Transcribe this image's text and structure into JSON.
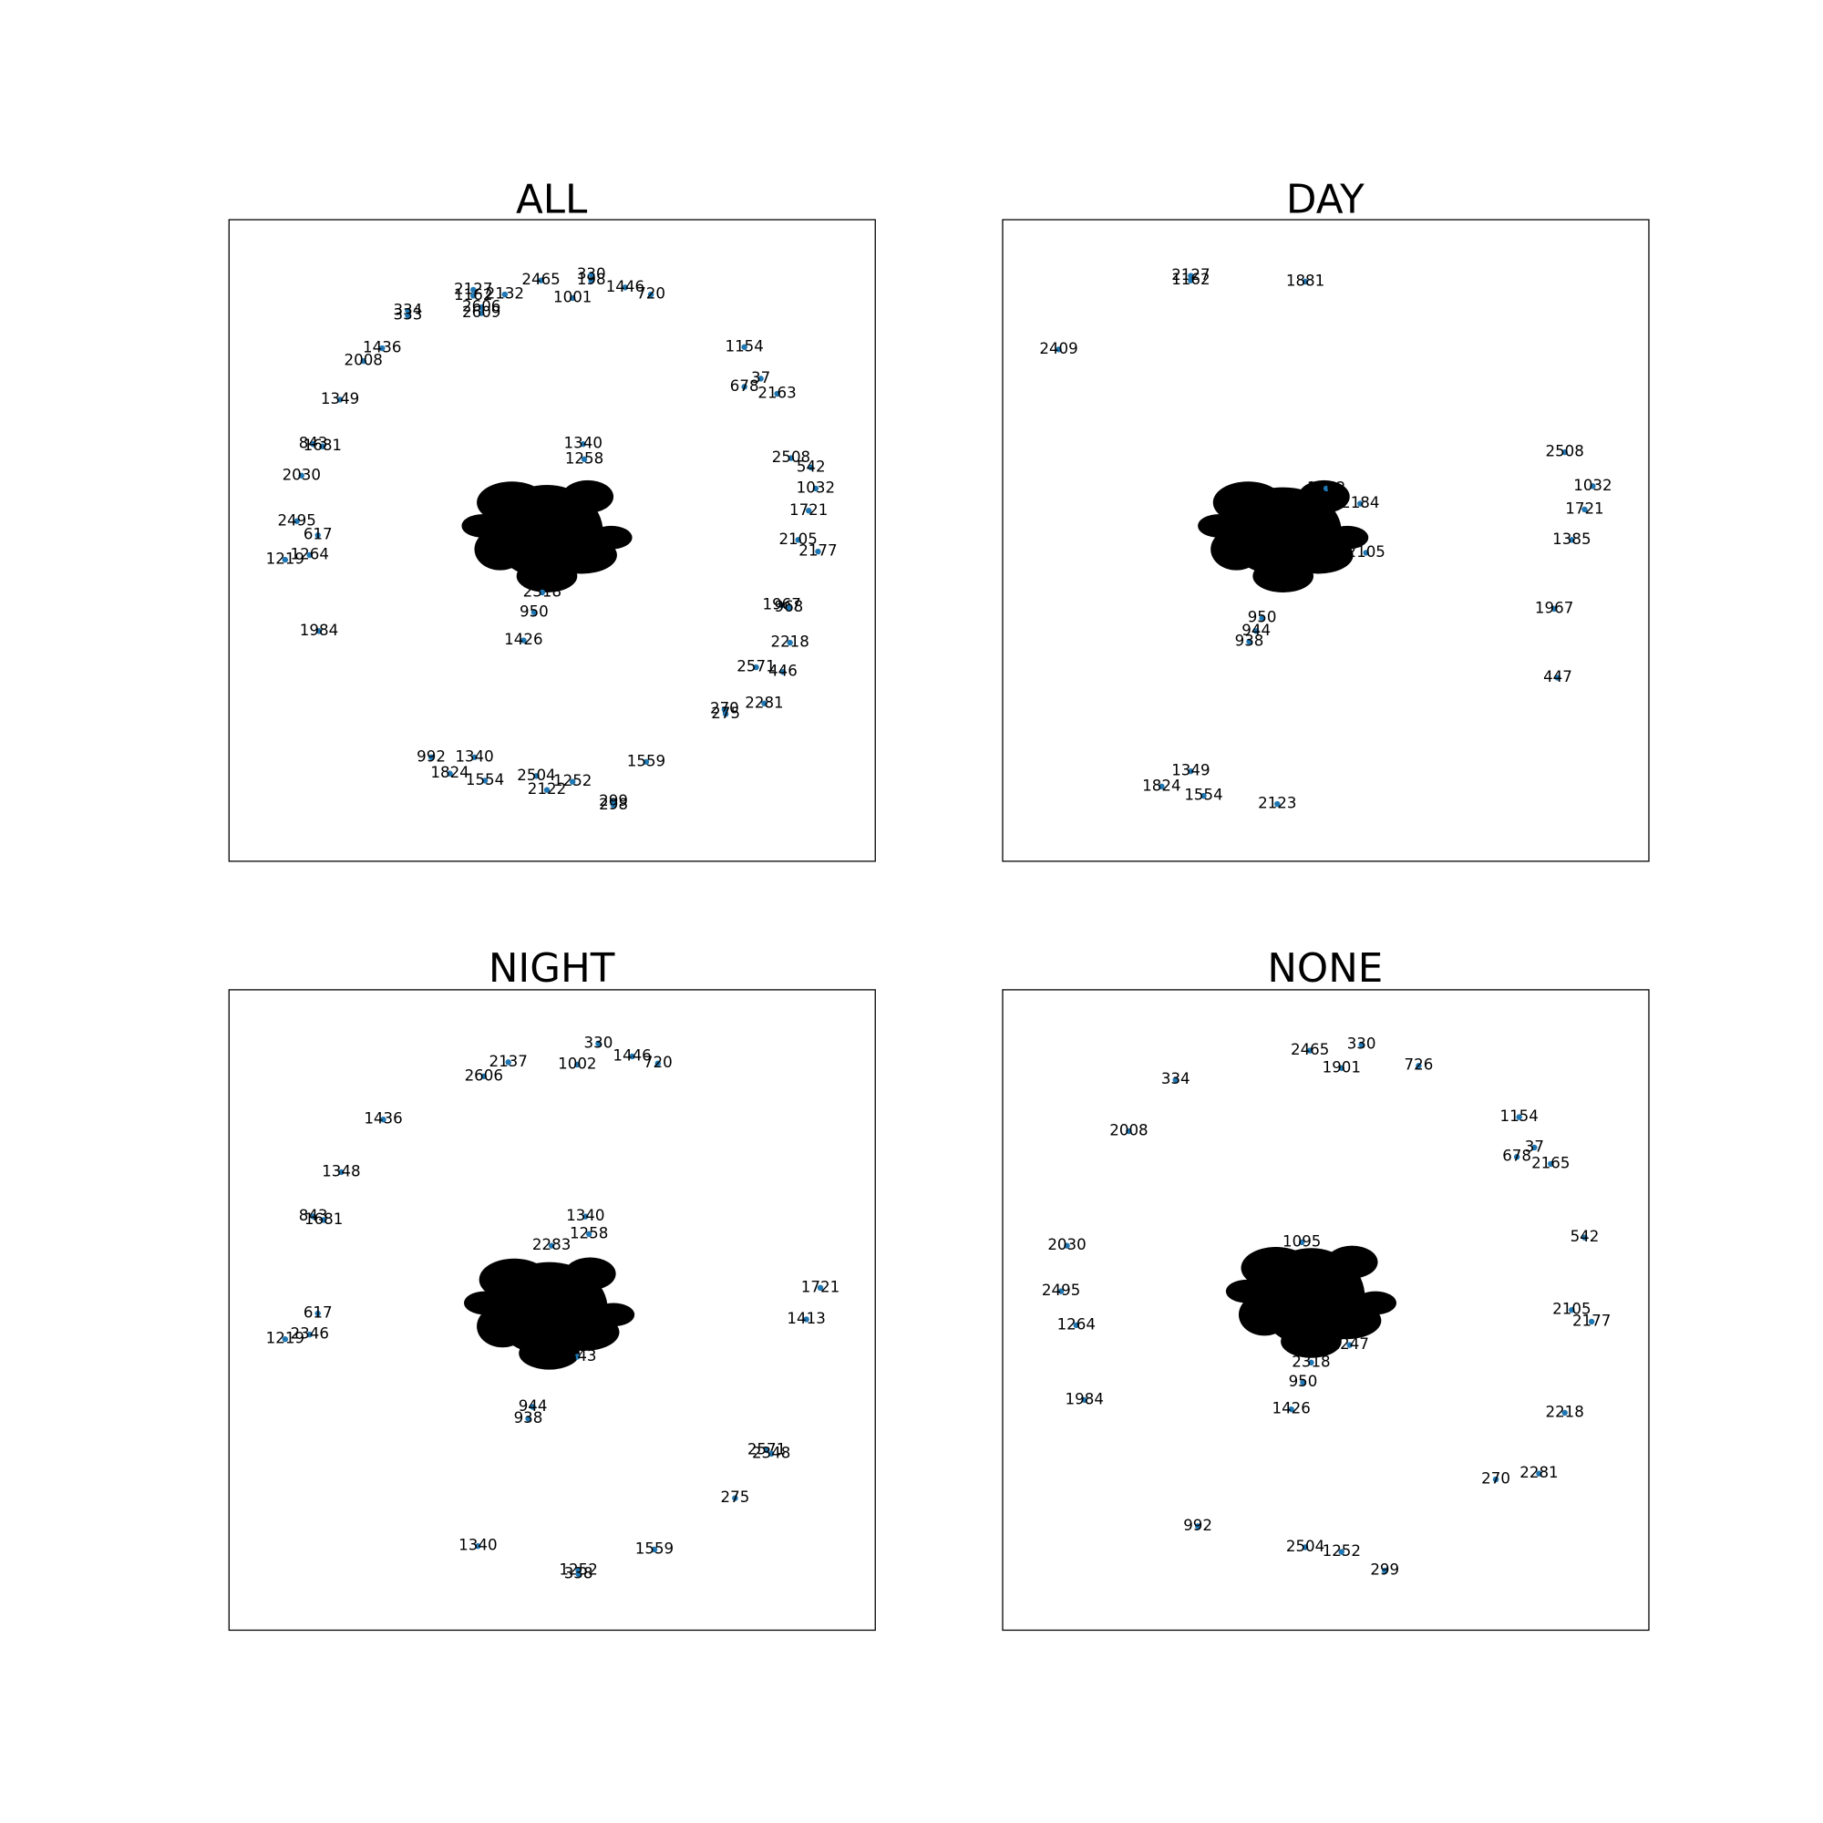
{
  "panels": [
    {
      "title": "ALL",
      "nodes": [
        "2127",
        "1162",
        "2132",
        "2465",
        "198",
        "330",
        "1001",
        "1446",
        "720",
        "334",
        "333",
        "2606",
        "2609",
        "1436",
        "2008",
        "1349",
        "843",
        "1681",
        "2030",
        "2495",
        "617",
        "1219",
        "1264",
        "1984",
        "1154",
        "678",
        "37",
        "2163",
        "2508",
        "542",
        "1032",
        "1721",
        "2105",
        "2177",
        "1967",
        "968",
        "2218",
        "2571",
        "446",
        "2281",
        "270",
        "275",
        "992",
        "1340",
        "1824",
        "1554",
        "2504",
        "1252",
        "2122",
        "1559",
        "299",
        "298",
        "2318",
        "950",
        "1426",
        "1258",
        "1340"
      ]
    },
    {
      "title": "DAY",
      "nodes": [
        "2127",
        "1162",
        "1881",
        "2409",
        "2508",
        "1032",
        "1721",
        "1385",
        "1967",
        "447",
        "1349",
        "1824",
        "1554",
        "2123",
        "950",
        "944",
        "938",
        "1762",
        "2184",
        "2105"
      ]
    },
    {
      "title": "NIGHT",
      "nodes": [
        "330",
        "1446",
        "720",
        "2137",
        "1002",
        "2606",
        "1436",
        "1348",
        "843",
        "1681",
        "617",
        "1219",
        "2346",
        "1721",
        "1413",
        "944",
        "938",
        "2571",
        "2348",
        "275",
        "1340",
        "1559",
        "1252",
        "338",
        "1340",
        "1258",
        "2283",
        "2343"
      ]
    },
    {
      "title": "NONE",
      "nodes": [
        "2465",
        "330",
        "1901",
        "726",
        "334",
        "2008",
        "1154",
        "678",
        "37",
        "2165",
        "2030",
        "542",
        "2495",
        "1264",
        "2105",
        "2177",
        "1984",
        "2218",
        "270",
        "2281",
        "992",
        "2504",
        "1252",
        "299",
        "2318",
        "1247",
        "950",
        "1426",
        "1095"
      ]
    }
  ]
}
